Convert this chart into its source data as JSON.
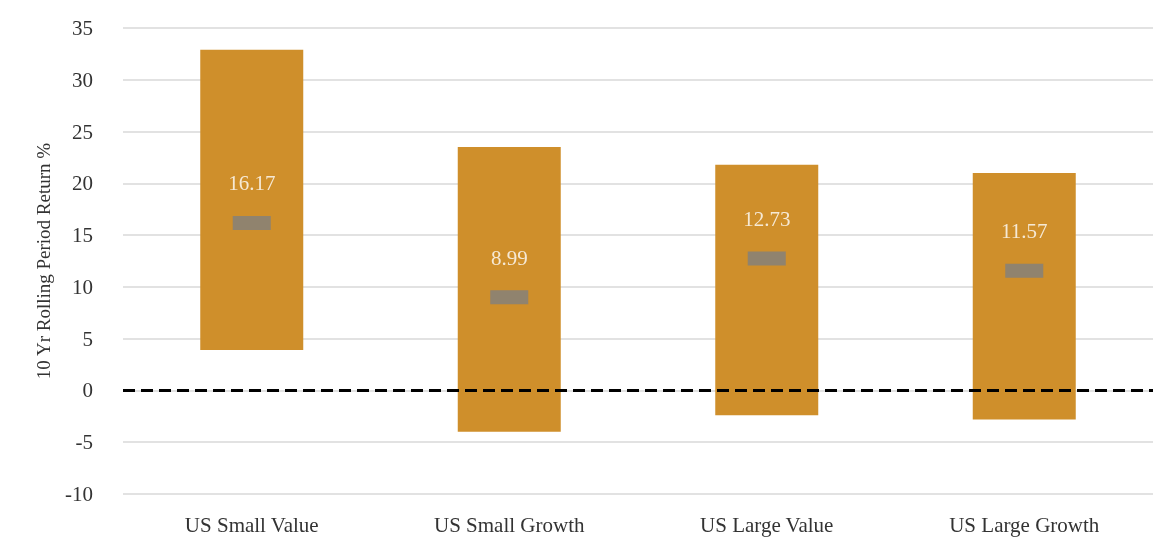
{
  "chart_data": {
    "type": "bar",
    "ylabel": "10 Yr Rolling Period Return %",
    "categories": [
      "US Small Value",
      "US Small Growth",
      "US Large Value",
      "US Large Growth"
    ],
    "series": [
      {
        "color": "#cf8f2b",
        "base": [
          3.9,
          -4.0,
          -2.4,
          -2.8
        ],
        "values": [
          29.0,
          27.5,
          24.2,
          23.8
        ]
      },
      {
        "type": "scatter",
        "color": "#808080",
        "x": [
          "US Small Value",
          "US Small Growth",
          "US Large Value",
          "US Large Growth"
        ],
        "values": [
          16.17,
          8.99,
          12.73,
          11.57
        ],
        "value_labels": [
          "16.17",
          "8.99",
          "12.73",
          "11.57"
        ]
      }
    ],
    "marker": "square",
    "ylim": [
      -10,
      35
    ],
    "yticks": [
      -10,
      -5,
      0,
      5,
      10,
      15,
      20,
      25,
      30,
      35
    ],
    "grid": "y",
    "ref_lines": [
      {
        "axis": "y",
        "value": 0,
        "color": "#000000",
        "line_style": "dashed"
      }
    ]
  }
}
